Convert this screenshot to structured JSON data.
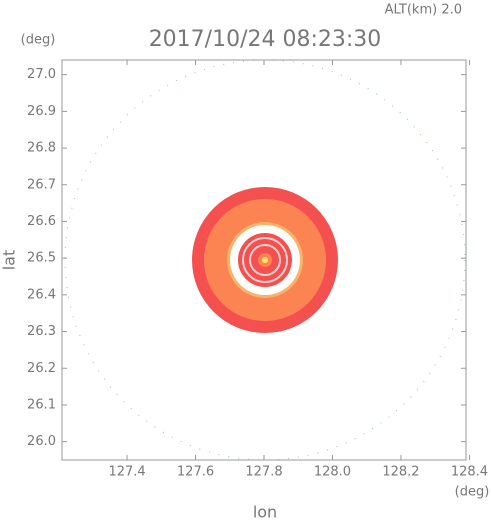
{
  "chart_data": {
    "type": "radar-map",
    "title": "2017/10/24 08:23:30",
    "annotation": "ALT(km) 2.0",
    "x_label": "lon",
    "y_label": "lat",
    "x_unit": "(deg)",
    "y_unit": "(deg)",
    "xlim": [
      127.21,
      128.39
    ],
    "ylim": [
      25.95,
      27.04
    ],
    "xticks": [
      {
        "value": 127.4,
        "label": "127.4"
      },
      {
        "value": 127.6,
        "label": "127.6"
      },
      {
        "value": 127.8,
        "label": "127.8"
      },
      {
        "value": 128.0,
        "label": "128.0"
      },
      {
        "value": 128.2,
        "label": "128.2"
      },
      {
        "value": 128.4,
        "label": "128.4"
      }
    ],
    "yticks": [
      {
        "value": 26.0,
        "label": "26.0"
      },
      {
        "value": 26.1,
        "label": "26.1"
      },
      {
        "value": 26.2,
        "label": "26.2"
      },
      {
        "value": 26.3,
        "label": "26.3"
      },
      {
        "value": 26.4,
        "label": "26.4"
      },
      {
        "value": 26.5,
        "label": "26.5"
      },
      {
        "value": 26.6,
        "label": "26.6"
      },
      {
        "value": 26.7,
        "label": "26.7"
      },
      {
        "value": 26.8,
        "label": "26.8"
      },
      {
        "value": 26.9,
        "label": "26.9"
      },
      {
        "value": 27.0,
        "label": "27.0"
      }
    ]
  }
}
